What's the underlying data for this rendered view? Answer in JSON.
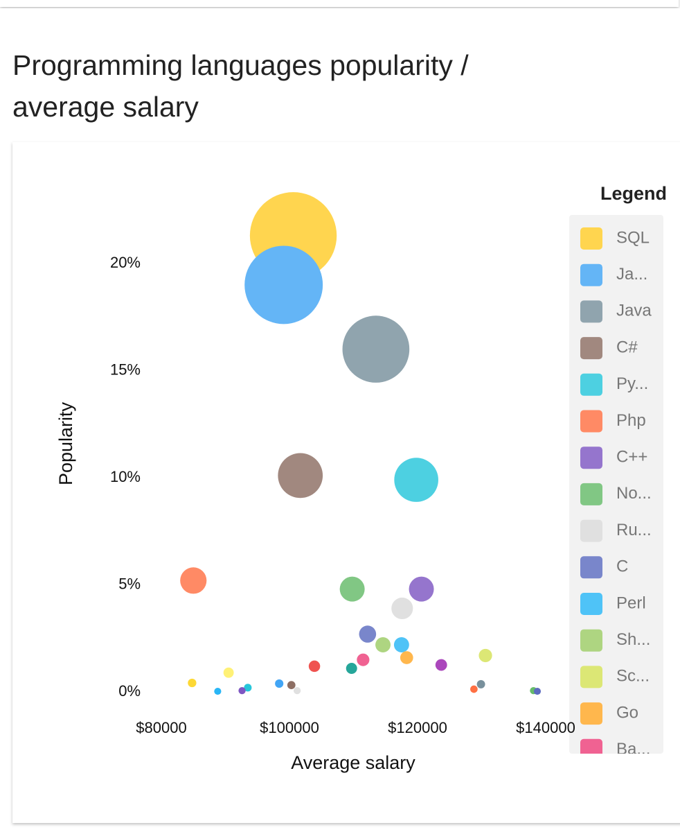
{
  "chart_data": {
    "type": "bubble",
    "title": "Programming languages popularity / average salary",
    "xlabel": "Average salary",
    "ylabel": "Popularity",
    "legend_title": "Legend",
    "xlim": [
      78000,
      142000
    ],
    "ylim": [
      -1,
      24
    ],
    "xticks": [
      {
        "value": 80000,
        "label": "$80000"
      },
      {
        "value": 100000,
        "label": "$100000"
      },
      {
        "value": 120000,
        "label": "$120000"
      },
      {
        "value": 140000,
        "label": "$140000"
      }
    ],
    "yticks": [
      {
        "value": 0,
        "label": "0%"
      },
      {
        "value": 5,
        "label": "5%"
      },
      {
        "value": 10,
        "label": "10%"
      },
      {
        "value": 15,
        "label": "15%"
      },
      {
        "value": 20,
        "label": "20%"
      }
    ],
    "grid": false,
    "series": [
      {
        "name": "SQL",
        "color": "#ffd54f",
        "x": [
          100600
        ],
        "values": [
          21.3
        ]
      },
      {
        "name": "Ja...",
        "color": "#64b5f6",
        "x": [
          99100
        ],
        "values": [
          19.0
        ]
      },
      {
        "name": "Java",
        "color": "#90a4ae",
        "x": [
          113500
        ],
        "values": [
          16.0
        ]
      },
      {
        "name": "C#",
        "color": "#a1887f",
        "x": [
          101700
        ],
        "values": [
          10.1
        ]
      },
      {
        "name": "Py...",
        "color": "#4dd0e1",
        "x": [
          119800
        ],
        "values": [
          9.9
        ]
      },
      {
        "name": "Php",
        "color": "#ff8a65",
        "x": [
          85000
        ],
        "values": [
          5.2
        ]
      },
      {
        "name": "C++",
        "color": "#9575cd",
        "x": [
          120600
        ],
        "values": [
          4.8
        ]
      },
      {
        "name": "No...",
        "color": "#81c784",
        "x": [
          109800
        ],
        "values": [
          4.8
        ]
      },
      {
        "name": "Ru...",
        "color": "#e0e0e0",
        "x": [
          117600
        ],
        "values": [
          3.9
        ]
      },
      {
        "name": "C",
        "color": "#7986cb",
        "x": [
          112200
        ],
        "values": [
          2.7
        ]
      },
      {
        "name": "Perl",
        "color": "#4fc3f7",
        "x": [
          117500
        ],
        "values": [
          2.2
        ]
      },
      {
        "name": "Sh...",
        "color": "#aed581",
        "x": [
          114600
        ],
        "values": [
          2.2
        ]
      },
      {
        "name": "Sc...",
        "color": "#dce775",
        "x": [
          130600
        ],
        "values": [
          1.7
        ]
      },
      {
        "name": "Go",
        "color": "#ffb74d",
        "x": [
          118300
        ],
        "values": [
          1.6
        ]
      },
      {
        "name": "Ba...",
        "color": "#f06292",
        "x": [
          111500
        ],
        "values": [
          1.5
        ]
      },
      {
        "color": "#26a69a",
        "x": [
          109700
        ],
        "values": [
          1.1
        ]
      },
      {
        "color": "#ef5350",
        "x": [
          103900
        ],
        "values": [
          1.2
        ]
      },
      {
        "color": "#ab47bc",
        "x": [
          123700
        ],
        "values": [
          1.26
        ]
      },
      {
        "color": "#fff176",
        "x": [
          90500
        ],
        "values": [
          0.9
        ]
      },
      {
        "color": "#fdd835",
        "x": [
          84800
        ],
        "values": [
          0.42
        ]
      },
      {
        "color": "#26c6da",
        "x": [
          93500
        ],
        "values": [
          0.2
        ]
      },
      {
        "color": "#42a5f5",
        "x": [
          98400
        ],
        "values": [
          0.39
        ]
      },
      {
        "color": "#8d6e63",
        "x": [
          100300
        ],
        "values": [
          0.32
        ]
      },
      {
        "color": "#e0e0e0",
        "x": [
          101200
        ],
        "values": [
          0.06
        ]
      },
      {
        "color": "#7e57c2",
        "x": [
          92600
        ],
        "values": [
          0.06
        ]
      },
      {
        "color": "#29b6f6",
        "x": [
          88800
        ],
        "values": [
          0.03
        ]
      },
      {
        "color": "#ff7043",
        "x": [
          128800
        ],
        "values": [
          0.13
        ]
      },
      {
        "color": "#78909c",
        "x": [
          129900
        ],
        "values": [
          0.36
        ]
      },
      {
        "color": "#66bb6a",
        "x": [
          138100
        ],
        "values": [
          0.06
        ]
      },
      {
        "color": "#5c6bc0",
        "x": [
          138700
        ],
        "values": [
          0.03
        ]
      }
    ]
  }
}
